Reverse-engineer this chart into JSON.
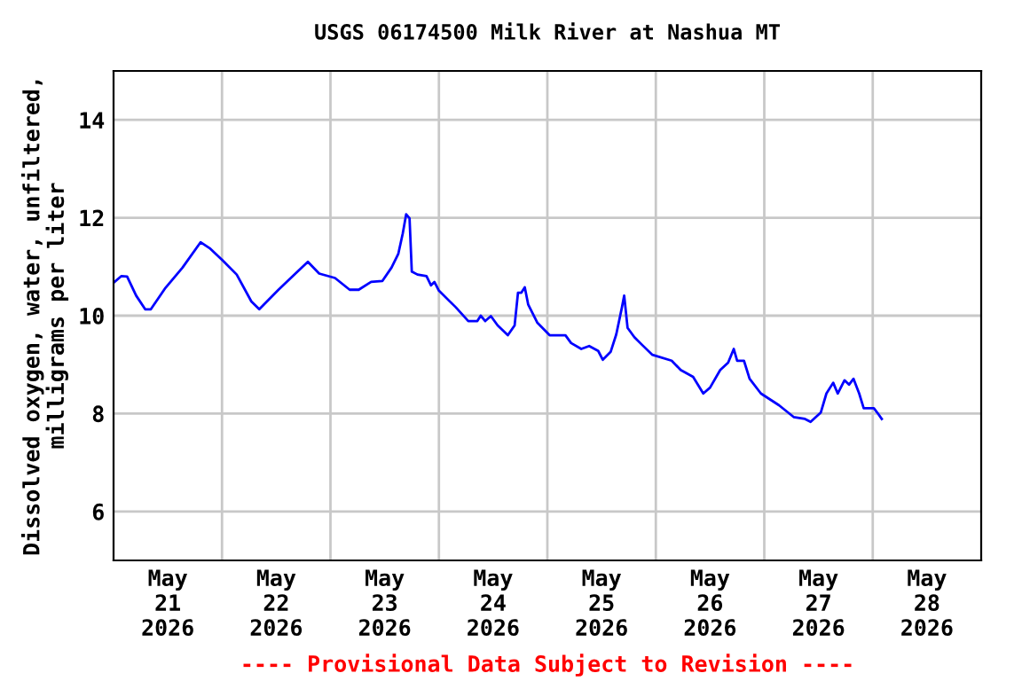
{
  "chart_data": {
    "type": "line",
    "title": "USGS 06174500 Milk River at Nashua MT",
    "ylabel": "Dissolved oxygen, water, unfiltered,\nmilligrams per liter",
    "annotations": [
      "---- Provisional Data Subject to Revision ----"
    ],
    "xlim": [
      "2026-05-21T00:00",
      "2026-05-29T00:00"
    ],
    "xticks": [
      {
        "value": "2026-05-21T12:00",
        "label": "May\n21\n2026"
      },
      {
        "value": "2026-05-22T12:00",
        "label": "May\n22\n2026"
      },
      {
        "value": "2026-05-23T12:00",
        "label": "May\n23\n2026"
      },
      {
        "value": "2026-05-24T12:00",
        "label": "May\n24\n2026"
      },
      {
        "value": "2026-05-25T12:00",
        "label": "May\n25\n2026"
      },
      {
        "value": "2026-05-26T12:00",
        "label": "May\n26\n2026"
      },
      {
        "value": "2026-05-27T12:00",
        "label": "May\n27\n2026"
      },
      {
        "value": "2026-05-28T12:00",
        "label": "May\n28\n2026"
      },
      {
        "value": "2026-05-22T00:00",
        "label": null
      },
      {
        "value": "2026-05-23T00:00",
        "label": null
      },
      {
        "value": "2026-05-24T00:00",
        "label": null
      },
      {
        "value": "2026-05-25T00:00",
        "label": null
      },
      {
        "value": "2026-05-26T00:00",
        "label": null
      },
      {
        "value": "2026-05-27T00:00",
        "label": null
      },
      {
        "value": "2026-05-28T00:00",
        "label": null
      }
    ],
    "ylim": [
      5,
      15
    ],
    "yticks": [
      6,
      8,
      10,
      12,
      14
    ],
    "grid": true,
    "legend": false,
    "marker": "none",
    "line_style": "solid",
    "series": [
      {
        "color": "#0000ff",
        "x": [
          "2026-05-21T00:15",
          "2026-05-21T01:45",
          "2026-05-21T03:00",
          "2026-05-21T05:00",
          "2026-05-21T07:00",
          "2026-05-21T08:15",
          "2026-05-21T11:30",
          "2026-05-21T15:15",
          "2026-05-21T19:15",
          "2026-05-21T21:15",
          "2026-05-22T00:00",
          "2026-05-22T03:15",
          "2026-05-22T06:30",
          "2026-05-22T08:15",
          "2026-05-22T12:30",
          "2026-05-22T16:15",
          "2026-05-22T19:00",
          "2026-05-22T21:30",
          "2026-05-23T01:00",
          "2026-05-23T04:15",
          "2026-05-23T06:15",
          "2026-05-23T09:00",
          "2026-05-23T11:30",
          "2026-05-23T13:30",
          "2026-05-23T15:00",
          "2026-05-23T16:00",
          "2026-05-23T16:45",
          "2026-05-23T17:30",
          "2026-05-23T18:00",
          "2026-05-23T19:15",
          "2026-05-23T21:15",
          "2026-05-23T22:15",
          "2026-05-23T23:00",
          "2026-05-24T00:00",
          "2026-05-24T03:45",
          "2026-05-24T06:30",
          "2026-05-24T08:30",
          "2026-05-24T09:15",
          "2026-05-24T10:15",
          "2026-05-24T11:30",
          "2026-05-24T13:00",
          "2026-05-24T15:15",
          "2026-05-24T16:45",
          "2026-05-24T17:30",
          "2026-05-24T18:15",
          "2026-05-24T19:00",
          "2026-05-24T19:45",
          "2026-05-24T21:45",
          "2026-05-25T00:30",
          "2026-05-25T04:00",
          "2026-05-25T05:15",
          "2026-05-25T07:30",
          "2026-05-25T09:15",
          "2026-05-25T11:15",
          "2026-05-25T12:15",
          "2026-05-25T14:00",
          "2026-05-25T15:15",
          "2026-05-25T16:30",
          "2026-05-25T17:00",
          "2026-05-25T17:45",
          "2026-05-25T19:15",
          "2026-05-25T21:00",
          "2026-05-25T23:15",
          "2026-05-26T03:30",
          "2026-05-26T05:30",
          "2026-05-26T08:15",
          "2026-05-26T10:30",
          "2026-05-26T12:00",
          "2026-05-26T14:15",
          "2026-05-26T16:00",
          "2026-05-26T17:15",
          "2026-05-26T18:00",
          "2026-05-26T19:30",
          "2026-05-26T20:45",
          "2026-05-26T23:15",
          "2026-05-27T03:15",
          "2026-05-27T06:30",
          "2026-05-27T09:00",
          "2026-05-27T10:15",
          "2026-05-27T12:30",
          "2026-05-27T13:45",
          "2026-05-27T15:15",
          "2026-05-27T16:15",
          "2026-05-27T17:45",
          "2026-05-27T18:45",
          "2026-05-27T19:45",
          "2026-05-27T21:00",
          "2026-05-27T22:00",
          "2026-05-28T00:15",
          "2026-05-28T01:00",
          "2026-05-28T02:00"
        ],
        "values": [
          10.69,
          10.81,
          10.8,
          10.41,
          10.13,
          10.13,
          10.57,
          10.98,
          11.5,
          11.38,
          11.14,
          10.84,
          10.29,
          10.13,
          10.53,
          10.86,
          11.1,
          10.86,
          10.77,
          10.53,
          10.53,
          10.69,
          10.71,
          10.98,
          11.26,
          11.68,
          12.07,
          11.99,
          10.9,
          10.84,
          10.81,
          10.62,
          10.69,
          10.51,
          10.17,
          9.89,
          9.89,
          10.0,
          9.89,
          9.99,
          9.8,
          9.6,
          9.8,
          10.47,
          10.47,
          10.58,
          10.23,
          9.86,
          9.6,
          9.6,
          9.44,
          9.32,
          9.38,
          9.28,
          9.1,
          9.26,
          9.62,
          10.17,
          10.41,
          9.75,
          9.56,
          9.4,
          9.2,
          9.08,
          8.89,
          8.75,
          8.41,
          8.53,
          8.89,
          9.04,
          9.32,
          9.08,
          9.08,
          8.71,
          8.41,
          8.17,
          7.93,
          7.89,
          7.83,
          8.02,
          8.41,
          8.63,
          8.41,
          8.68,
          8.59,
          8.71,
          8.41,
          8.11,
          8.11,
          8.02,
          7.89
        ]
      }
    ]
  }
}
